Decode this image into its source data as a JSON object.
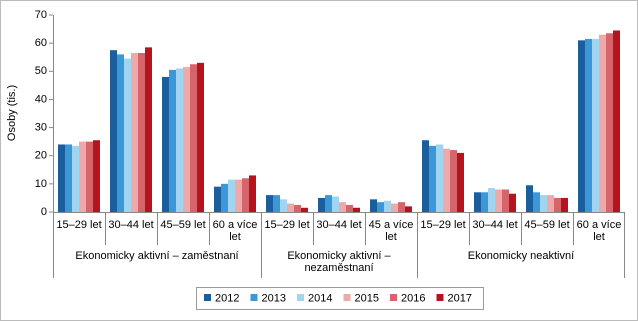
{
  "chart_data": {
    "type": "bar",
    "y_label": "Osoby (tis.)",
    "groups": [
      {
        "name": "Ekonomicky aktivní – zaměstnaní",
        "categories": [
          "15–29 let",
          "30–44 let",
          "45–59 let",
          "60 a více let"
        ]
      },
      {
        "name": "Ekonomicky aktivní – nezaměstnaní",
        "categories": [
          "15–29 let",
          "30–44 let",
          "45 a více let"
        ]
      },
      {
        "name": "Ekonomicky neaktivní",
        "categories": [
          "15–29 let",
          "30–44 let",
          "45–59 let",
          "60 a více let"
        ]
      }
    ],
    "series": [
      {
        "name": "2012",
        "color": "#1b5e9e",
        "values": [
          24,
          57.5,
          48,
          9,
          6,
          5,
          4.5,
          25.5,
          7,
          9.5,
          61
        ]
      },
      {
        "name": "2013",
        "color": "#3a98d6",
        "values": [
          24,
          56,
          50.5,
          10,
          6,
          6,
          3.5,
          23.5,
          7,
          7,
          61.5
        ]
      },
      {
        "name": "2014",
        "color": "#a3d4ef",
        "values": [
          23.5,
          54.5,
          51,
          11.5,
          4.5,
          5.5,
          4,
          24,
          8.5,
          6,
          61.5
        ]
      },
      {
        "name": "2015",
        "color": "#efa9a9",
        "values": [
          25,
          56.5,
          51.5,
          11.5,
          3,
          3.5,
          3,
          22.5,
          8,
          6,
          63
        ]
      },
      {
        "name": "2016",
        "color": "#d8646b",
        "values": [
          25,
          56.5,
          52.5,
          12,
          2.5,
          2.5,
          3.5,
          22,
          8,
          5,
          63.5
        ]
      },
      {
        "name": "2017",
        "color": "#b3141e",
        "values": [
          25.5,
          58.5,
          53,
          13,
          1.5,
          1.5,
          2,
          21,
          6.5,
          5,
          64.5
        ]
      }
    ],
    "ylim": [
      0,
      70
    ],
    "yticks": [
      0,
      10,
      20,
      30,
      40,
      50,
      60,
      70
    ],
    "grid": false,
    "legend": "bottom"
  }
}
